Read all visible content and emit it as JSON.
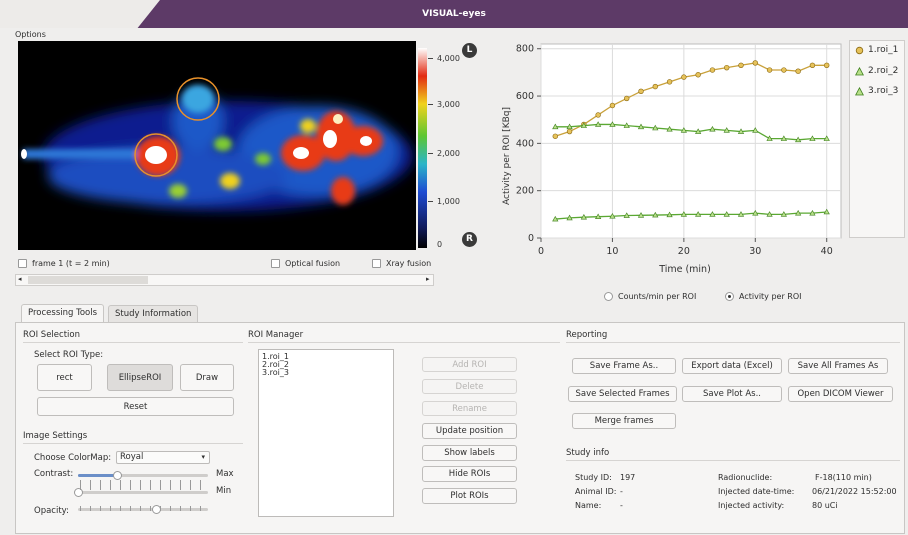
{
  "window": {
    "title": "VISUAL-eyes"
  },
  "menu": {
    "options": "Options"
  },
  "colorbar": {
    "labels": [
      "4,000",
      "3,000",
      "2,000",
      "1,000",
      "0"
    ],
    "top_button": "L",
    "bottom_button": "R"
  },
  "image_controls": {
    "frame_label": "frame 1 (t = 2 min)",
    "optical_fusion": "Optical fusion",
    "xray_fusion": "Xray fusion"
  },
  "plot": {
    "ylabel": "Activity per ROI [KBq]",
    "xlabel": "Time (min)",
    "yticks": [
      "0",
      "200",
      "400",
      "600",
      "800"
    ],
    "xticks": [
      "0",
      "10",
      "20",
      "30",
      "40"
    ],
    "legend": [
      "1.roi_1",
      "2.roi_2",
      "3.roi_3"
    ],
    "radio_counts": "Counts/min per ROI",
    "radio_activity": "Activity per ROI"
  },
  "chart_data": {
    "type": "line",
    "xlabel": "Time (min)",
    "ylabel": "Activity per ROI [KBq]",
    "xlim": [
      0,
      42
    ],
    "ylim": [
      0,
      820
    ],
    "x": [
      2,
      4,
      6,
      8,
      10,
      12,
      14,
      16,
      18,
      20,
      22,
      24,
      26,
      28,
      30,
      32,
      34,
      36,
      38,
      40
    ],
    "series": [
      {
        "name": "1.roi_1",
        "color": "#c9a13a",
        "marker": "circle",
        "values": [
          430,
          450,
          480,
          520,
          560,
          590,
          620,
          640,
          660,
          680,
          690,
          710,
          720,
          730,
          740,
          710,
          710,
          705,
          730,
          730
        ]
      },
      {
        "name": "2.roi_2",
        "color": "#5aa832",
        "marker": "triangle",
        "values": [
          470,
          470,
          475,
          480,
          480,
          475,
          470,
          465,
          460,
          455,
          450,
          460,
          455,
          450,
          455,
          420,
          420,
          415,
          420,
          420
        ]
      },
      {
        "name": "3.roi_3",
        "color": "#5aa832",
        "marker": "triangle",
        "values": [
          80,
          85,
          88,
          90,
          92,
          95,
          96,
          97,
          98,
          100,
          100,
          100,
          100,
          100,
          105,
          100,
          100,
          105,
          105,
          110
        ]
      }
    ],
    "grid": true,
    "legend_position": "right"
  },
  "tabs": [
    "Processing Tools",
    "Study Information"
  ],
  "roi_selection": {
    "title": "ROI Selection",
    "type_label": "Select ROI Type:",
    "rect": "rect",
    "ellipse": "EllipseROI",
    "draw": "Draw",
    "reset": "Reset"
  },
  "image_settings": {
    "title": "Image Settings",
    "colormap_label": "Choose ColorMap:",
    "colormap_value": "Royal",
    "contrast_label": "Contrast:",
    "max_label": "Max",
    "min_label": "Min",
    "opacity_label": "Opacity:",
    "contrast_max": 0.3,
    "contrast_min": 0.0,
    "opacity": 0.6
  },
  "roi_manager": {
    "title": "ROI Manager",
    "items": [
      "1.roi_1",
      "2.roi_2",
      "3.roi_3"
    ],
    "add": "Add ROI",
    "delete": "Delete",
    "rename": "Rename",
    "update": "Update position",
    "show_labels": "Show labels",
    "hide": "Hide ROIs",
    "plot": "Plot ROIs"
  },
  "reporting": {
    "title": "Reporting",
    "save_frame": "Save Frame As..",
    "export": "Export data (Excel)",
    "save_all": "Save All Frames As",
    "save_selected": "Save Selected Frames",
    "save_plot": "Save Plot As..",
    "open_dicom": "Open DICOM Viewer",
    "merge": "Merge frames"
  },
  "study_info": {
    "title": "Study info",
    "study_id_label": "Study ID:",
    "study_id": "197",
    "animal_id_label": "Animal ID:",
    "animal_id": "-",
    "name_label": "Name:",
    "name": "-",
    "radionuclide_label": "Radionuclide:",
    "radionuclide": "F-18(110 min)",
    "injected_dt_label": "Injected date-time:",
    "injected_dt": "06/21/2022 15:52:00",
    "injected_act_label": "Injected activity:",
    "injected_act": "80 uCi"
  }
}
